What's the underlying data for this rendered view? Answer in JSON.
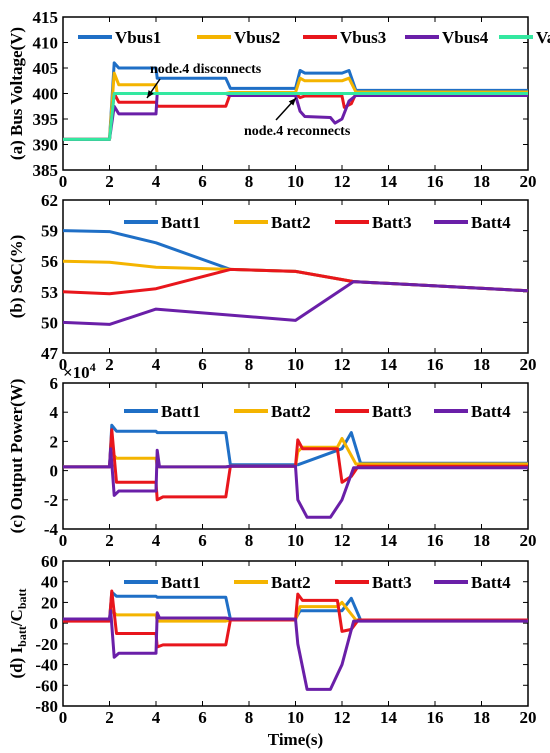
{
  "xlabel": "Time(s)",
  "chart_data": [
    {
      "type": "line",
      "ylabel": "(a) Bus Voltage(V)",
      "xlim": [
        0,
        20
      ],
      "ylim": [
        385,
        415
      ],
      "xticks": [
        "0",
        "2",
        "4",
        "6",
        "8",
        "10",
        "12",
        "14",
        "16",
        "18",
        "20"
      ],
      "yticks": [
        "385",
        "390",
        "395",
        "400",
        "405",
        "410",
        "415"
      ],
      "legend_position": "top",
      "series": [
        {
          "name": "Vbus1",
          "color": "#1f6fc6",
          "points": [
            [
              0,
              391
            ],
            [
              2.0,
              391
            ],
            [
              2.2,
              406
            ],
            [
              2.4,
              405
            ],
            [
              4.0,
              405
            ],
            [
              4.05,
              403
            ],
            [
              7.0,
              403
            ],
            [
              7.2,
              401
            ],
            [
              10.0,
              401
            ],
            [
              10.2,
              404.5
            ],
            [
              10.4,
              404
            ],
            [
              12.0,
              404
            ],
            [
              12.3,
              404.5
            ],
            [
              12.6,
              400.6
            ],
            [
              20,
              400.6
            ]
          ]
        },
        {
          "name": "Vbus2",
          "color": "#f4b400",
          "points": [
            [
              0,
              391
            ],
            [
              2.0,
              391
            ],
            [
              2.2,
              404
            ],
            [
              2.4,
              401.7
            ],
            [
              4.0,
              401.7
            ],
            [
              4.05,
              400
            ],
            [
              7.0,
              400
            ],
            [
              7.2,
              400.2
            ],
            [
              10.0,
              400.2
            ],
            [
              10.2,
              403
            ],
            [
              10.4,
              402.5
            ],
            [
              12.0,
              402.5
            ],
            [
              12.3,
              403
            ],
            [
              12.6,
              400.3
            ],
            [
              20,
              400.3
            ]
          ]
        },
        {
          "name": "Vbus3",
          "color": "#e8161c",
          "points": [
            [
              0,
              391
            ],
            [
              2.0,
              391
            ],
            [
              2.2,
              400
            ],
            [
              2.4,
              398.3
            ],
            [
              4.0,
              398.3
            ],
            [
              4.05,
              397.5
            ],
            [
              7.0,
              397.5
            ],
            [
              7.2,
              400
            ],
            [
              10.0,
              400
            ],
            [
              10.2,
              399.2
            ],
            [
              10.4,
              399.5
            ],
            [
              12.0,
              399.5
            ],
            [
              12.1,
              397.3
            ],
            [
              12.4,
              398
            ],
            [
              12.6,
              400
            ],
            [
              20,
              400
            ]
          ]
        },
        {
          "name": "Vbus4",
          "color": "#6a1fa8",
          "points": [
            [
              0,
              391
            ],
            [
              2.0,
              391
            ],
            [
              2.2,
              397.5
            ],
            [
              2.4,
              396
            ],
            [
              4.0,
              396
            ],
            [
              4.05,
              400
            ],
            [
              7.0,
              400
            ],
            [
              7.2,
              399.6
            ],
            [
              10.0,
              399.6
            ],
            [
              10.2,
              396.5
            ],
            [
              10.4,
              395.5
            ],
            [
              11.5,
              395.3
            ],
            [
              11.7,
              394.2
            ],
            [
              12.0,
              395
            ],
            [
              12.3,
              398.5
            ],
            [
              12.6,
              399.6
            ],
            [
              20,
              399.6
            ]
          ]
        },
        {
          "name": "Vavg",
          "color": "#33e8a0",
          "points": [
            [
              0,
              391
            ],
            [
              2.0,
              391
            ],
            [
              2.2,
              400
            ],
            [
              20,
              400
            ]
          ]
        }
      ],
      "annotations": [
        {
          "text": "node.4 disconnects",
          "x": 4.0,
          "y": 401.5
        },
        {
          "text": "node.4 reconnects",
          "x": 10.0,
          "y": 400.5
        }
      ]
    },
    {
      "type": "line",
      "ylabel": "(b) SoC(%)",
      "xlim": [
        0,
        20
      ],
      "ylim": [
        47,
        62
      ],
      "xticks": [
        "0",
        "2",
        "4",
        "6",
        "8",
        "10",
        "12",
        "14",
        "16",
        "18",
        "20"
      ],
      "yticks": [
        "47",
        "50",
        "53",
        "56",
        "59",
        "62"
      ],
      "legend_position": "top",
      "series": [
        {
          "name": "Batt1",
          "color": "#1f6fc6",
          "points": [
            [
              0,
              59
            ],
            [
              2,
              58.9
            ],
            [
              4,
              57.8
            ],
            [
              7.2,
              55.2
            ],
            [
              10,
              55
            ],
            [
              12.5,
              54
            ],
            [
              20,
              53.1
            ]
          ]
        },
        {
          "name": "Batt2",
          "color": "#f4b400",
          "points": [
            [
              0,
              56
            ],
            [
              2,
              55.9
            ],
            [
              4,
              55.4
            ],
            [
              7.2,
              55.2
            ],
            [
              10,
              55
            ],
            [
              12.5,
              54
            ],
            [
              20,
              53.1
            ]
          ]
        },
        {
          "name": "Batt3",
          "color": "#e8161c",
          "points": [
            [
              0,
              53
            ],
            [
              2,
              52.8
            ],
            [
              4,
              53.3
            ],
            [
              7.2,
              55.2
            ],
            [
              10,
              55
            ],
            [
              12.5,
              54
            ],
            [
              20,
              53.1
            ]
          ]
        },
        {
          "name": "Batt4",
          "color": "#6a1fa8",
          "points": [
            [
              0,
              50
            ],
            [
              2,
              49.8
            ],
            [
              4,
              51.3
            ],
            [
              10,
              50.2
            ],
            [
              12.5,
              54
            ],
            [
              20,
              53.1
            ]
          ]
        }
      ]
    },
    {
      "type": "line",
      "ylabel": "(c) Output Power(W)",
      "scale_label": "×10",
      "scale_exp": "4",
      "xlim": [
        0,
        20
      ],
      "ylim": [
        -4,
        6
      ],
      "xticks": [
        "0",
        "2",
        "4",
        "6",
        "8",
        "10",
        "12",
        "14",
        "16",
        "18",
        "20"
      ],
      "yticks": [
        "-4",
        "-2",
        "0",
        "2",
        "4",
        "6"
      ],
      "legend_position": "top",
      "series": [
        {
          "name": "Batt1",
          "color": "#1f6fc6",
          "points": [
            [
              0,
              0.25
            ],
            [
              2.0,
              0.25
            ],
            [
              2.1,
              3.1
            ],
            [
              2.3,
              2.7
            ],
            [
              4.0,
              2.7
            ],
            [
              4.05,
              2.6
            ],
            [
              7.0,
              2.6
            ],
            [
              7.2,
              0.4
            ],
            [
              10.0,
              0.4
            ],
            [
              10.1,
              0.4
            ],
            [
              12.0,
              1.5
            ],
            [
              12.4,
              2.6
            ],
            [
              12.8,
              0.5
            ],
            [
              20,
              0.5
            ]
          ]
        },
        {
          "name": "Batt2",
          "color": "#f4b400",
          "points": [
            [
              0,
              0.25
            ],
            [
              2.0,
              0.25
            ],
            [
              2.1,
              1.2
            ],
            [
              2.3,
              0.85
            ],
            [
              4.0,
              0.85
            ],
            [
              4.05,
              0.25
            ],
            [
              7.0,
              0.25
            ],
            [
              7.2,
              0.3
            ],
            [
              10.0,
              0.3
            ],
            [
              10.1,
              1.3
            ],
            [
              10.3,
              1.6
            ],
            [
              11.8,
              1.6
            ],
            [
              12.0,
              2.2
            ],
            [
              12.6,
              0.45
            ],
            [
              20,
              0.45
            ]
          ]
        },
        {
          "name": "Batt3",
          "color": "#e8161c",
          "points": [
            [
              0,
              0.25
            ],
            [
              2.0,
              0.25
            ],
            [
              2.1,
              2.8
            ],
            [
              2.3,
              -0.8
            ],
            [
              4.0,
              -0.8
            ],
            [
              4.05,
              -2.0
            ],
            [
              4.3,
              -1.8
            ],
            [
              7.0,
              -1.8
            ],
            [
              7.2,
              0.3
            ],
            [
              10.0,
              0.3
            ],
            [
              10.1,
              2.1
            ],
            [
              10.3,
              1.5
            ],
            [
              11.8,
              1.5
            ],
            [
              12.0,
              -0.8
            ],
            [
              12.4,
              -0.4
            ],
            [
              12.7,
              0.3
            ],
            [
              20,
              0.3
            ]
          ]
        },
        {
          "name": "Batt4",
          "color": "#6a1fa8",
          "points": [
            [
              0,
              0.25
            ],
            [
              2.0,
              0.25
            ],
            [
              2.05,
              1.5
            ],
            [
              2.2,
              -1.7
            ],
            [
              2.4,
              -1.4
            ],
            [
              4.0,
              -1.4
            ],
            [
              4.05,
              1.4
            ],
            [
              4.15,
              0.25
            ],
            [
              7.0,
              0.25
            ],
            [
              7.2,
              0.3
            ],
            [
              10.0,
              0.3
            ],
            [
              10.1,
              -2.0
            ],
            [
              10.5,
              -3.2
            ],
            [
              11.5,
              -3.2
            ],
            [
              12.0,
              -2.0
            ],
            [
              12.5,
              0.2
            ],
            [
              20,
              0.2
            ]
          ]
        }
      ]
    },
    {
      "type": "line",
      "ylabel_main": "I",
      "ylabel_sub1": "batt",
      "ylabel_mid": "/C",
      "ylabel_sub2": "batt",
      "ylabel_prefix": "(d) ",
      "xlim": [
        0,
        20
      ],
      "ylim": [
        -80,
        60
      ],
      "xticks": [
        "0",
        "2",
        "4",
        "6",
        "8",
        "10",
        "12",
        "14",
        "16",
        "18",
        "20"
      ],
      "yticks": [
        "-80",
        "-60",
        "-40",
        "-20",
        "0",
        "20",
        "40",
        "60"
      ],
      "legend_position": "top",
      "series": [
        {
          "name": "Batt1",
          "color": "#1f6fc6",
          "points": [
            [
              0,
              3
            ],
            [
              2.0,
              3
            ],
            [
              2.1,
              30
            ],
            [
              2.3,
              26
            ],
            [
              4.0,
              26
            ],
            [
              4.05,
              25
            ],
            [
              7.0,
              25
            ],
            [
              7.2,
              4
            ],
            [
              10.0,
              4
            ],
            [
              10.2,
              12
            ],
            [
              12.0,
              12
            ],
            [
              12.4,
              24
            ],
            [
              12.8,
              3
            ],
            [
              20,
              3
            ]
          ]
        },
        {
          "name": "Batt2",
          "color": "#f4b400",
          "points": [
            [
              0,
              3
            ],
            [
              2.0,
              3
            ],
            [
              2.1,
              12
            ],
            [
              2.3,
              8
            ],
            [
              4.0,
              8
            ],
            [
              4.05,
              2
            ],
            [
              7.0,
              2
            ],
            [
              7.2,
              3
            ],
            [
              10.0,
              3
            ],
            [
              10.2,
              16
            ],
            [
              11.8,
              16
            ],
            [
              12.0,
              20
            ],
            [
              12.6,
              3
            ],
            [
              20,
              3
            ]
          ]
        },
        {
          "name": "Batt3",
          "color": "#e8161c",
          "points": [
            [
              0,
              2
            ],
            [
              2.0,
              2
            ],
            [
              2.1,
              31
            ],
            [
              2.3,
              -10
            ],
            [
              4.0,
              -10
            ],
            [
              4.05,
              -23
            ],
            [
              4.3,
              -21
            ],
            [
              7.0,
              -21
            ],
            [
              7.2,
              3
            ],
            [
              10.0,
              3
            ],
            [
              10.1,
              28
            ],
            [
              10.3,
              22
            ],
            [
              11.8,
              22
            ],
            [
              12.0,
              -8
            ],
            [
              12.4,
              -6
            ],
            [
              12.7,
              3
            ],
            [
              20,
              3
            ]
          ]
        },
        {
          "name": "Batt4",
          "color": "#6a1fa8",
          "points": [
            [
              0,
              4
            ],
            [
              2.0,
              4
            ],
            [
              2.05,
              12
            ],
            [
              2.2,
              -33
            ],
            [
              2.4,
              -29
            ],
            [
              4.0,
              -29
            ],
            [
              4.05,
              10
            ],
            [
              4.15,
              5
            ],
            [
              7.0,
              5
            ],
            [
              7.2,
              4
            ],
            [
              10.0,
              4
            ],
            [
              10.1,
              -20
            ],
            [
              10.5,
              -64
            ],
            [
              11.5,
              -64
            ],
            [
              12.0,
              -40
            ],
            [
              12.5,
              2
            ],
            [
              20,
              2
            ]
          ]
        }
      ]
    }
  ]
}
